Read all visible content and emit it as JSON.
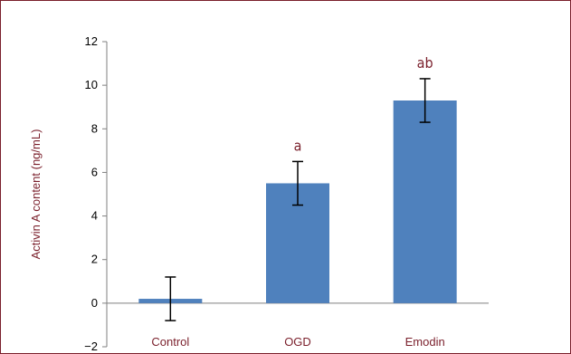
{
  "chart_data": {
    "type": "bar",
    "title": "",
    "xlabel": "",
    "ylabel": "Activin A content (ng/mL)",
    "ylim": [
      -2,
      12
    ],
    "yticks": [
      -2,
      0,
      2,
      4,
      6,
      8,
      10,
      12
    ],
    "ytick_labels": [
      "−2",
      "0",
      "2",
      "4",
      "6",
      "8",
      "10",
      "12"
    ],
    "categories": [
      "Control",
      "OGD",
      "Emodin"
    ],
    "values": [
      0.2,
      5.5,
      9.3
    ],
    "errors": [
      1.0,
      1.0,
      1.0
    ],
    "annotations": [
      "",
      "a",
      "ab"
    ],
    "grid": false,
    "legend": "none",
    "colors": {
      "bar": "#4f81bd",
      "text_accent": "#7a1f2b",
      "axis": "#7f7f7f",
      "error": "#000000",
      "frame": "#7a1f2b"
    }
  }
}
